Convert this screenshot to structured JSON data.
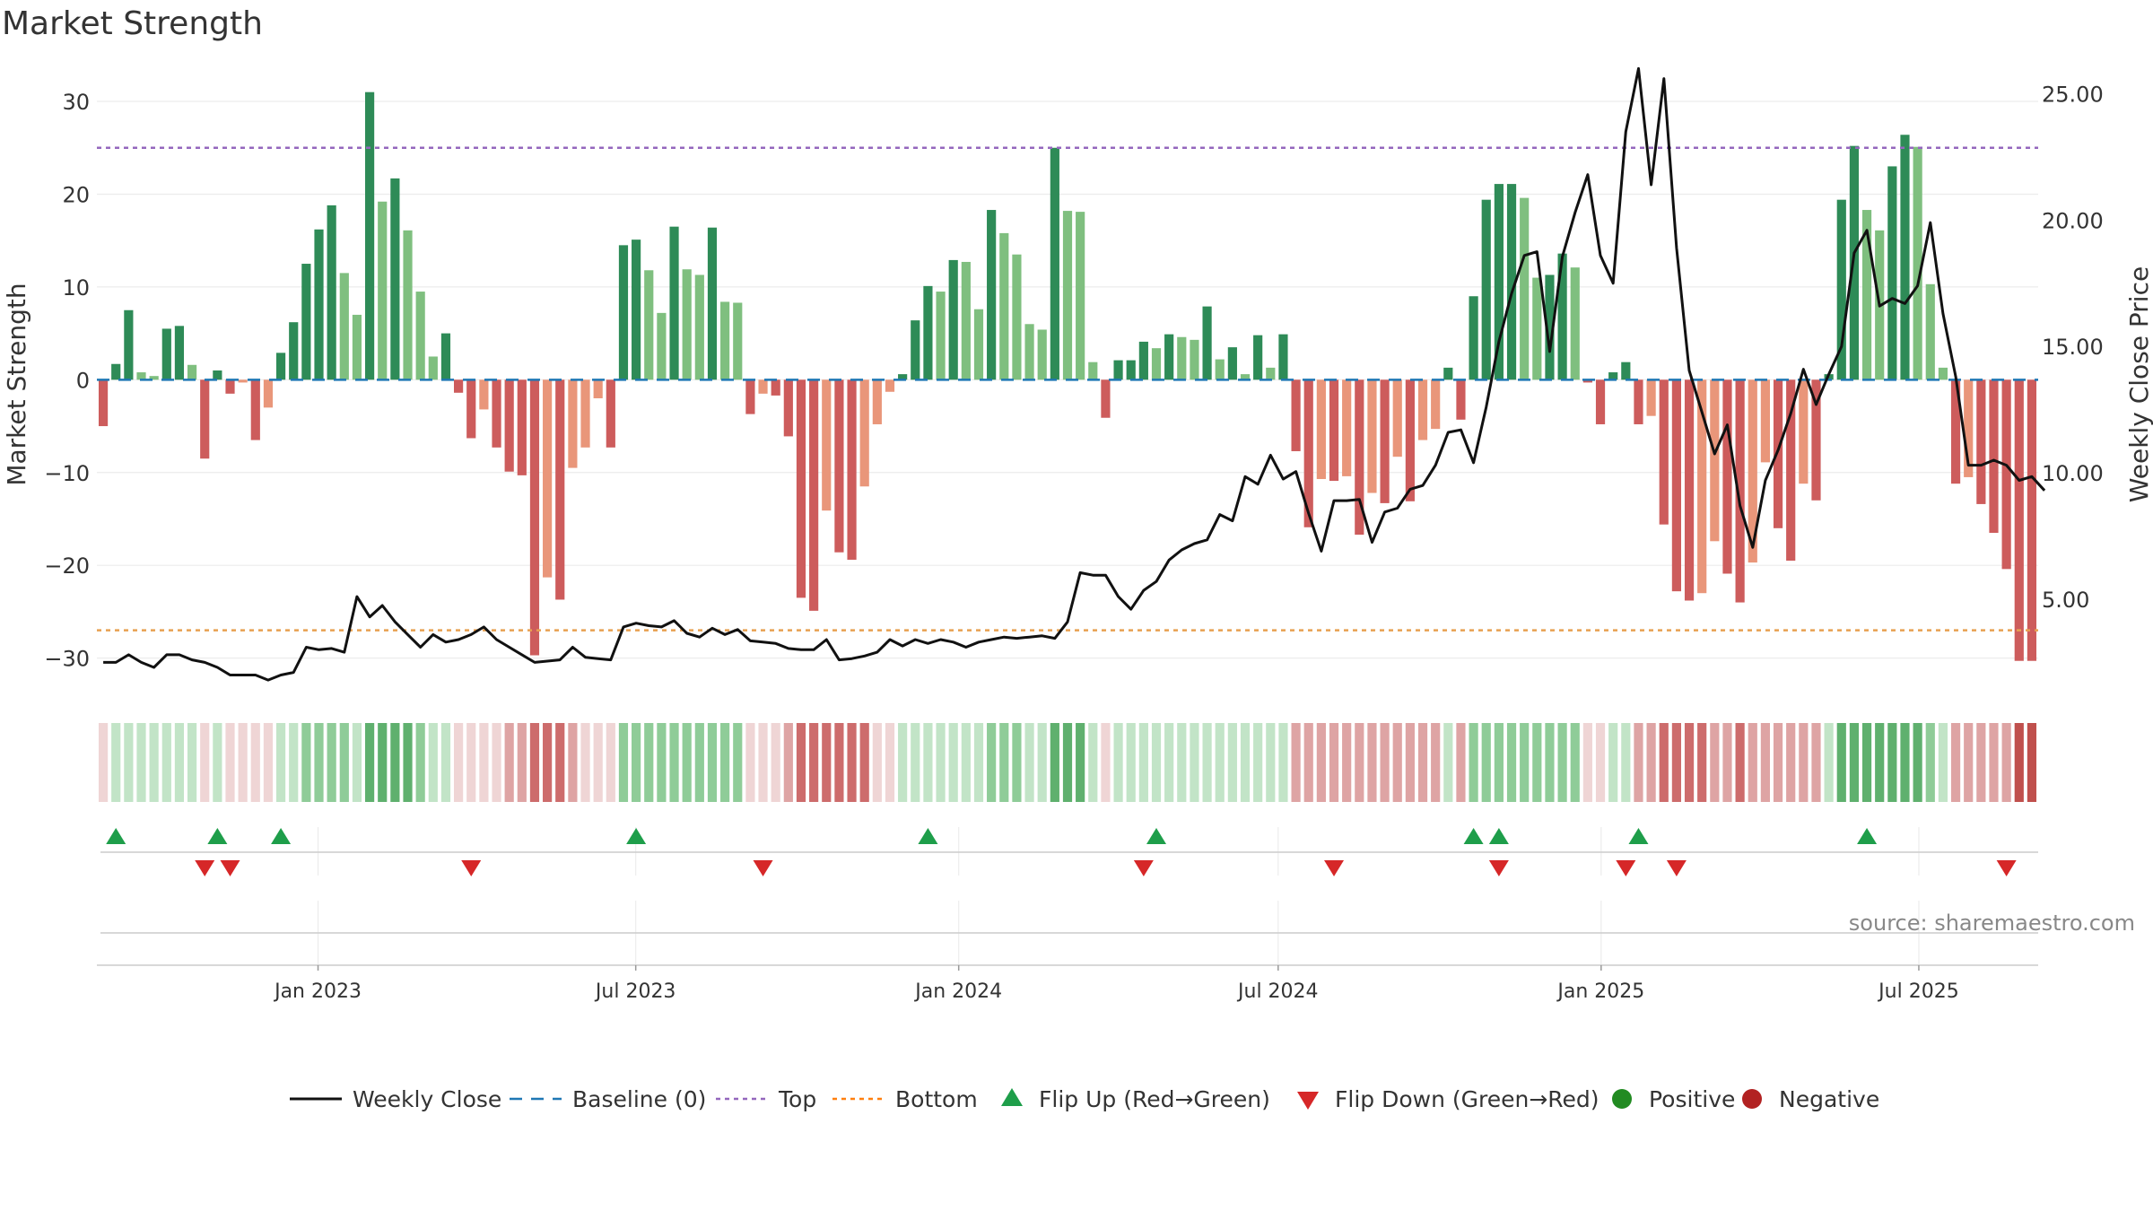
{
  "title": "Market Strength",
  "source": "source: sharemaestro.com",
  "chart_data": {
    "type": "bar",
    "title": "Market Strength",
    "ylabel": "Market Strength",
    "y2label": "Weekly Close Price",
    "ylim": [
      -34,
      33
    ],
    "y2lim": [
      1.2,
      25.8
    ],
    "yticks": [
      "30",
      "20",
      "10",
      "0",
      "−10",
      "−20",
      "−30"
    ],
    "yticks_values": [
      30,
      20,
      10,
      0,
      -10,
      -20,
      -30
    ],
    "y2ticks": [
      "25.00",
      "20.00",
      "15.00",
      "10.00",
      "5.00"
    ],
    "y2ticks_values": [
      25,
      20,
      15,
      10,
      5
    ],
    "xticks": [
      "Jan 2023",
      "Jul 2023",
      "Jan 2024",
      "Jul 2024",
      "Jan 2025",
      "Jul 2025"
    ],
    "xticks_dates": [
      "2023-01-01",
      "2023-07-01",
      "2024-01-01",
      "2024-07-01",
      "2025-01-01",
      "2025-07-01"
    ],
    "start_date": "2022-08-28",
    "end_date": "2025-09-07",
    "top_level": 25,
    "bottom_level": -27,
    "grid": true,
    "legend_position": "bottom",
    "legend": [
      {
        "label": "Weekly Close",
        "kind": "line",
        "color": "#111111"
      },
      {
        "label": "Baseline (0)",
        "kind": "dash",
        "color": "#1f77b4"
      },
      {
        "label": "Top",
        "kind": "dot",
        "color": "#9467bd"
      },
      {
        "label": "Bottom",
        "kind": "dot",
        "color": "#ff7f0e"
      },
      {
        "label": "Flip Up (Red→Green)",
        "kind": "tri-up",
        "color": "#1e9e4a"
      },
      {
        "label": "Flip Down (Green→Red)",
        "kind": "tri-down",
        "color": "#d62728"
      },
      {
        "label": "Positive",
        "kind": "circle",
        "color": "#228b22"
      },
      {
        "label": "Negative",
        "kind": "circle",
        "color": "#b22222"
      }
    ],
    "colors": {
      "pos_strong": "#2e8b57",
      "pos_light": "#7fbf7f",
      "neg_strong": "#cd5c5c",
      "neg_light": "#e9967a",
      "close_line": "#111111",
      "top_line": "#9467bd",
      "bottom_line": "#e8a050",
      "baseline": "#1f77b4"
    },
    "strength": [
      -5,
      1.7,
      7.5,
      0.8,
      0.4,
      5.5,
      5.8,
      1.6,
      -8.5,
      1,
      -1.5,
      -0.3,
      -6.5,
      -3,
      2.9,
      6.2,
      12.5,
      16.2,
      18.8,
      11.5,
      7,
      31,
      19.2,
      21.7,
      16.1,
      9.5,
      2.5,
      5,
      -1.4,
      -6.3,
      -3.2,
      -7.3,
      -9.9,
      -10.3,
      -29.7,
      -21.3,
      -23.7,
      -9.5,
      -7.3,
      -2,
      -7.3,
      14.5,
      15.1,
      11.8,
      7.2,
      16.5,
      11.9,
      11.3,
      16.4,
      8.4,
      8.3,
      -3.7,
      -1.5,
      -1.7,
      -6.1,
      -23.5,
      -24.9,
      -14.1,
      -18.6,
      -19.4,
      -11.5,
      -4.8,
      -1.3,
      0.6,
      6.4,
      10.1,
      9.5,
      12.9,
      12.7,
      7.6,
      18.3,
      15.8,
      13.5,
      6,
      5.4,
      25,
      18.2,
      18.1,
      1.9,
      -4.1,
      2.1,
      2.1,
      4.1,
      3.4,
      4.9,
      4.6,
      4.3,
      7.9,
      2.2,
      3.5,
      0.6,
      4.8,
      1.3,
      4.9,
      -7.7,
      -15.9,
      -10.7,
      -10.9,
      -10.4,
      -16.7,
      -12.2,
      -13.3,
      -8.3,
      -13.1,
      -6.5,
      -5.3,
      1.3,
      -4.3,
      9,
      19.4,
      21.1,
      21.1,
      19.6,
      11,
      11.3,
      13.6,
      12.1,
      -0.3,
      -4.8,
      0.8,
      1.9,
      -4.8,
      -3.9,
      -15.6,
      -22.8,
      -23.8,
      -23,
      -17.4,
      -20.9,
      -24,
      -19.7,
      -8.9,
      -16,
      -19.5,
      -11.2,
      -13,
      0.6,
      19.4,
      25.2,
      18.3,
      16.1,
      23,
      26.4,
      25.1,
      10.3,
      1.3,
      -11.2,
      -10.5,
      -13.4,
      -16.5,
      -20.4,
      -30.3,
      -30.3
    ],
    "close": [
      2.5,
      2.5,
      2.8,
      2.5,
      2.3,
      2.8,
      2.8,
      2.6,
      2.5,
      2.3,
      2,
      2,
      2,
      1.8,
      2,
      2.1,
      3.1,
      3,
      3.05,
      2.9,
      5.1,
      4.3,
      4.75,
      4.1,
      3.6,
      3.1,
      3.6,
      3.3,
      3.4,
      3.6,
      3.9,
      3.4,
      3.1,
      2.8,
      2.5,
      2.55,
      2.6,
      3.1,
      2.7,
      2.65,
      2.6,
      3.9,
      4.05,
      3.95,
      3.9,
      4.15,
      3.65,
      3.5,
      3.85,
      3.6,
      3.8,
      3.35,
      3.3,
      3.25,
      3.05,
      3,
      3,
      3.4,
      2.6,
      2.65,
      2.75,
      2.9,
      3.4,
      3.15,
      3.4,
      3.25,
      3.4,
      3.3,
      3.1,
      3.3,
      3.4,
      3.5,
      3.45,
      3.5,
      3.55,
      3.45,
      4.1,
      6.05,
      5.95,
      5.95,
      5.1,
      4.6,
      5.35,
      5.7,
      6.55,
      6.95,
      7.2,
      7.35,
      8.35,
      8.1,
      9.85,
      9.55,
      10.7,
      9.75,
      10.05,
      8.4,
      6.9,
      8.9,
      8.9,
      8.95,
      7.25,
      8.45,
      8.6,
      9.35,
      9.5,
      10.3,
      11.6,
      11.7,
      10.4,
      12.6,
      15.2,
      17.1,
      18.6,
      18.75,
      14.8,
      18.55,
      20.3,
      21.8,
      18.6,
      17.5,
      23.5,
      26,
      21.4,
      25.6,
      18.9,
      14.05,
      12.4,
      10.75,
      11.9,
      8.7,
      7.05,
      9.7,
      10.9,
      12.35,
      14.1,
      12.7,
      13.9,
      15,
      18.7,
      19.6,
      16.6,
      16.9,
      16.7,
      17.4,
      19.9,
      16.3,
      13.8,
      10.3,
      10.3,
      10.5,
      10.3,
      9.7,
      9.85,
      9.3
    ],
    "strip_levels": [
      -1,
      1,
      1,
      1,
      1,
      1,
      1,
      1,
      -1,
      1,
      -1,
      -1,
      -1,
      -1,
      1,
      1,
      2,
      2,
      2,
      2,
      1,
      3,
      3,
      3,
      3,
      2,
      1,
      1,
      -1,
      -1,
      -1,
      -1,
      -2,
      -2,
      -3,
      -3,
      -3,
      -2,
      -1,
      -1,
      -1,
      2,
      2,
      2,
      2,
      2,
      2,
      2,
      2,
      2,
      2,
      -1,
      -1,
      -1,
      -2,
      -3,
      -3,
      -3,
      -3,
      -3,
      -3,
      -1,
      -1,
      1,
      1,
      1,
      1,
      1,
      1,
      1,
      2,
      2,
      2,
      1,
      1,
      3,
      3,
      3,
      1,
      -1,
      1,
      1,
      1,
      1,
      1,
      1,
      1,
      1,
      1,
      1,
      1,
      1,
      1,
      1,
      -2,
      -2,
      -2,
      -2,
      -2,
      -2,
      -2,
      -2,
      -2,
      -2,
      -2,
      -2,
      1,
      -2,
      2,
      2,
      2,
      2,
      2,
      2,
      2,
      2,
      2,
      -1,
      -1,
      1,
      1,
      -2,
      -2,
      -3,
      -3,
      -3,
      -3,
      -2,
      -2,
      -3,
      -2,
      -2,
      -2,
      -2,
      -2,
      -2,
      1,
      3,
      3,
      3,
      3,
      3,
      3,
      3,
      2,
      1,
      -2,
      -2,
      -2,
      -2,
      -2,
      -4,
      -4
    ],
    "flip_up": [
      1,
      9,
      14,
      42,
      65,
      83,
      108,
      110,
      121,
      139
    ],
    "flip_down": [
      8,
      10,
      29,
      52,
      82,
      97,
      110,
      120,
      124,
      150
    ]
  }
}
